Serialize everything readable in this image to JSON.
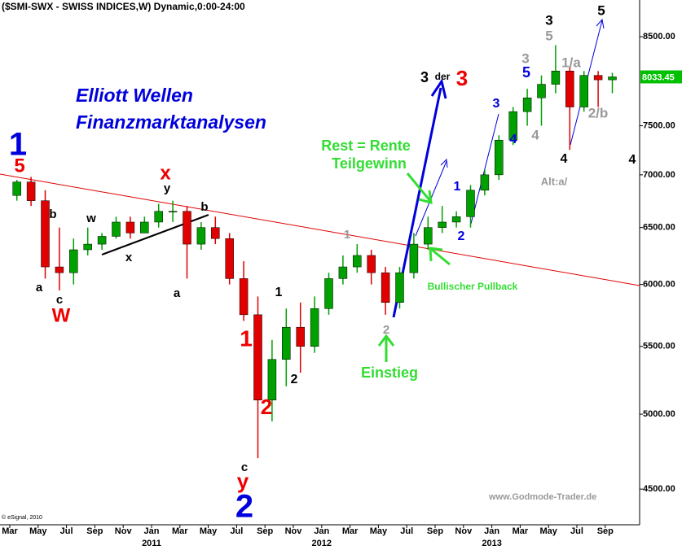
{
  "chart_data": {
    "type": "candlestick",
    "title": "($SMI-SWX - SWISS INDICES,W) Dynamic,0:00-24:00",
    "source": "© eSignal, 2010",
    "watermark": "www.Godmode-Trader.de",
    "log_scale": true,
    "ylim": [
      4280,
      8950
    ],
    "yticks": [
      {
        "value": 4500,
        "label": "4500.00"
      },
      {
        "value": 5000,
        "label": "5000.00"
      },
      {
        "value": 5500,
        "label": "5500.00"
      },
      {
        "value": 6000,
        "label": "6000.00"
      },
      {
        "value": 6500,
        "label": "6500.00"
      },
      {
        "value": 7000,
        "label": "7000.00"
      },
      {
        "value": 7500,
        "label": "7500.00"
      },
      {
        "value": 8500,
        "label": "8500.00"
      }
    ],
    "up_color": "#00a000",
    "down_color": "#e00000",
    "last_price": 8033.45,
    "x": [
      "2010-03",
      "2010-04",
      "2010-05",
      "2010-06",
      "2010-07",
      "2010-08",
      "2010-09",
      "2010-10",
      "2010-11",
      "2010-12",
      "2011-01",
      "2011-02",
      "2011-03",
      "2011-04",
      "2011-05",
      "2011-06",
      "2011-07",
      "2011-08",
      "2011-09",
      "2011-10",
      "2011-11",
      "2011-12",
      "2012-01",
      "2012-02",
      "2012-03",
      "2012-04",
      "2012-05",
      "2012-06",
      "2012-07",
      "2012-08",
      "2012-09",
      "2012-10",
      "2012-11",
      "2012-12",
      "2013-01",
      "2013-02",
      "2013-03",
      "2013-04",
      "2013-05",
      "2013-06",
      "2013-07",
      "2013-08",
      "2013-09"
    ],
    "open": [
      6800,
      6930,
      6750,
      6150,
      6100,
      6300,
      6350,
      6420,
      6550,
      6450,
      6550,
      6650,
      6650,
      6350,
      6500,
      6400,
      6050,
      5750,
      5100,
      5400,
      5650,
      5500,
      5800,
      6050,
      6150,
      6250,
      6100,
      5850,
      6100,
      6350,
      6500,
      6550,
      6600,
      6850,
      7000,
      7350,
      7650,
      7800,
      7950,
      8100,
      7700,
      8050,
      8000
    ],
    "high": [
      6950,
      6980,
      6850,
      6500,
      6400,
      6500,
      6450,
      6600,
      6600,
      6600,
      6720,
      6750,
      6700,
      6550,
      6600,
      6450,
      6200,
      5900,
      5550,
      5800,
      5850,
      5900,
      6100,
      6250,
      6350,
      6300,
      6150,
      6150,
      6450,
      6600,
      6700,
      6650,
      6900,
      7050,
      7400,
      7700,
      7900,
      8050,
      8400,
      8150,
      8100,
      8100,
      8080
    ],
    "low": [
      6750,
      6700,
      6050,
      5950,
      6000,
      6250,
      6300,
      6400,
      6400,
      6450,
      6500,
      6550,
      6050,
      6300,
      6350,
      6000,
      5700,
      4700,
      4950,
      5200,
      5300,
      5450,
      5750,
      6000,
      6100,
      6000,
      5750,
      5800,
      6050,
      6300,
      6450,
      6500,
      6500,
      6800,
      6950,
      7300,
      7500,
      7500,
      7850,
      7250,
      7650,
      7700,
      7850
    ],
    "close": [
      6930,
      6750,
      6150,
      6100,
      6300,
      6350,
      6420,
      6550,
      6450,
      6550,
      6650,
      6650,
      6350,
      6500,
      6400,
      6050,
      5750,
      5100,
      5400,
      5650,
      5500,
      5800,
      6050,
      6150,
      6250,
      6100,
      5850,
      6100,
      6350,
      6500,
      6550,
      6600,
      6850,
      7000,
      7350,
      7650,
      7800,
      7950,
      8100,
      7700,
      8050,
      8000,
      8033.45
    ],
    "xticks": [
      {
        "value": "2010-03",
        "label": "Mar"
      },
      {
        "value": "2010-05",
        "label": "May"
      },
      {
        "value": "2010-07",
        "label": "Jul"
      },
      {
        "value": "2010-09",
        "label": "Sep"
      },
      {
        "value": "2010-11",
        "label": "Nov"
      },
      {
        "value": "2011-01",
        "label": "Jan"
      },
      {
        "value": "2011-03",
        "label": "Mar"
      },
      {
        "value": "2011-05",
        "label": "May"
      },
      {
        "value": "2011-07",
        "label": "Jul"
      },
      {
        "value": "2011-09",
        "label": "Sep"
      },
      {
        "value": "2011-11",
        "label": "Nov"
      },
      {
        "value": "2012-01",
        "label": "Jan"
      },
      {
        "value": "2012-03",
        "label": "Mar"
      },
      {
        "value": "2012-05",
        "label": "May"
      },
      {
        "value": "2012-07",
        "label": "Jul"
      },
      {
        "value": "2012-09",
        "label": "Sep"
      },
      {
        "value": "2012-11",
        "label": "Nov"
      },
      {
        "value": "2013-01",
        "label": "Jan"
      },
      {
        "value": "2013-03",
        "label": "Mar"
      },
      {
        "value": "2013-05",
        "label": "May"
      },
      {
        "value": "2013-07",
        "label": "Jul"
      },
      {
        "value": "2013-09",
        "label": "Sep"
      }
    ],
    "year_labels": [
      {
        "value": "2011-01",
        "label": "2011"
      },
      {
        "value": "2012-01",
        "label": "2012"
      },
      {
        "value": "2013-01",
        "label": "2013"
      }
    ],
    "headline": [
      "Elliott Wellen",
      "Finanzmarktanalysen"
    ],
    "annotations": [
      {
        "text": "1",
        "color": "#0000dd"
      },
      {
        "text": "5",
        "color": "#ee0000"
      },
      {
        "text": "b",
        "color": "#000"
      },
      {
        "text": "a",
        "color": "#000"
      },
      {
        "text": "c",
        "color": "#000"
      },
      {
        "text": "W",
        "color": "#ee0000"
      },
      {
        "text": "w",
        "color": "#000"
      },
      {
        "text": "x",
        "color": "#000"
      },
      {
        "text": "x",
        "color": "#ee0000"
      },
      {
        "text": "y",
        "color": "#000"
      },
      {
        "text": "b",
        "color": "#000"
      },
      {
        "text": "a",
        "color": "#000"
      },
      {
        "text": "1",
        "color": "#ee0000"
      },
      {
        "text": "2",
        "color": "#ee0000"
      },
      {
        "text": "1",
        "color": "#000"
      },
      {
        "text": "2",
        "color": "#000"
      },
      {
        "text": "c",
        "color": "#000"
      },
      {
        "text": "y",
        "color": "#ee0000"
      },
      {
        "text": "2",
        "color": "#0000dd"
      },
      {
        "text": "1",
        "color": "#999"
      },
      {
        "text": "2",
        "color": "#999"
      },
      {
        "text": "3",
        "color": "#000"
      },
      {
        "text": "der",
        "color": "#000"
      },
      {
        "text": "3",
        "color": "#ee0000"
      },
      {
        "text": "1",
        "color": "#0000dd"
      },
      {
        "text": "2",
        "color": "#0000dd"
      },
      {
        "text": "3",
        "color": "#0000dd"
      },
      {
        "text": "4",
        "color": "#0000dd"
      },
      {
        "text": "5",
        "color": "#0000dd"
      },
      {
        "text": "3",
        "color": "#999"
      },
      {
        "text": "4",
        "color": "#999"
      },
      {
        "text": "3",
        "color": "#000"
      },
      {
        "text": "5",
        "color": "#999"
      },
      {
        "text": "1/a",
        "color": "#999"
      },
      {
        "text": "2/b",
        "color": "#999"
      },
      {
        "text": "4",
        "color": "#000"
      },
      {
        "text": "Alt:a/",
        "color": "#999"
      },
      {
        "text": "5",
        "color": "#000"
      },
      {
        "text": "4",
        "color": "#000"
      },
      {
        "text": "Rest = Rente",
        "color": "#33dd33"
      },
      {
        "text": "Teilgewinn",
        "color": "#33dd33"
      },
      {
        "text": "Bullischer Pullback",
        "color": "#33dd33"
      },
      {
        "text": "Einstieg",
        "color": "#33dd33"
      }
    ]
  }
}
